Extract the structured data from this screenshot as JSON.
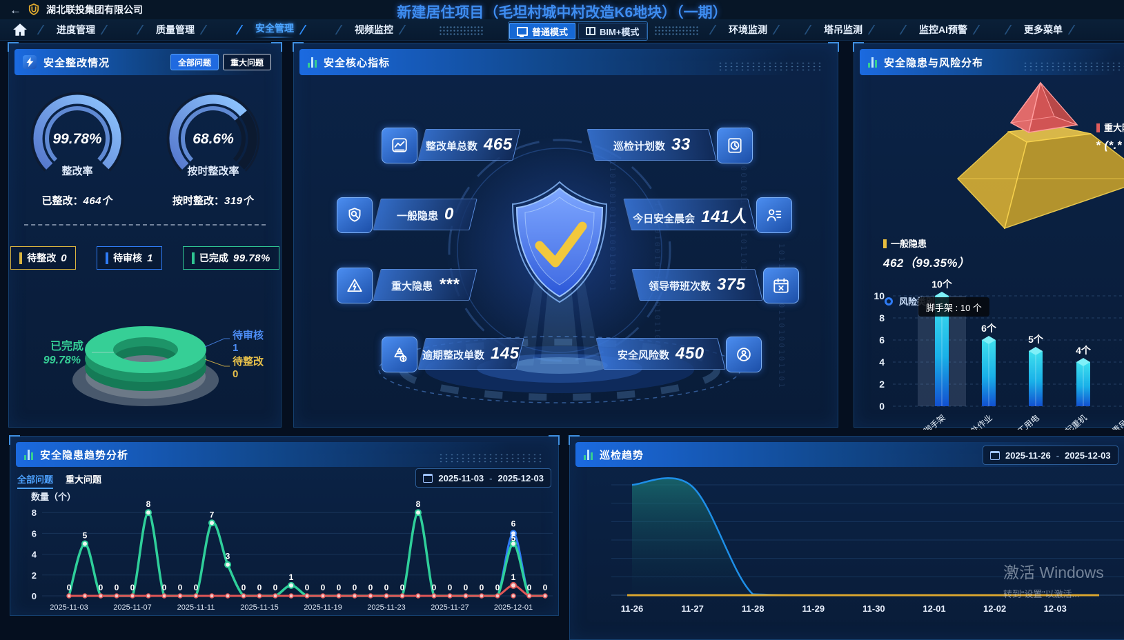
{
  "app": {
    "back_icon": "←",
    "company": "湖北联投集团有限公司",
    "project_title": "新建居住项目（毛坦村城中村改造K6地块）（一期）"
  },
  "nav": {
    "tabs_left": [
      {
        "label": "进度管理"
      },
      {
        "label": "质量管理"
      },
      {
        "label": "安全管理"
      },
      {
        "label": "视频监控"
      }
    ],
    "active_tab": "安全管理",
    "mode_toggle": [
      {
        "label": "普通模式",
        "active": true
      },
      {
        "label": "BIM+模式",
        "active": false
      }
    ],
    "tabs_right": [
      {
        "label": "环境监测"
      },
      {
        "label": "塔吊监测"
      },
      {
        "label": "监控AI预警"
      },
      {
        "label": "更多菜单"
      }
    ]
  },
  "rectification": {
    "title": "安全整改情况",
    "filters": [
      {
        "label": "全部问题",
        "active": true
      },
      {
        "label": "重大问题",
        "active": false
      }
    ],
    "gauges": [
      {
        "value": "99.78%",
        "percent": 99.78,
        "label": "整改率",
        "stat_label": "已整改：",
        "stat_value": "464个"
      },
      {
        "value": "68.6%",
        "percent": 68.6,
        "label": "按时整改率",
        "stat_label": "按时整改：",
        "stat_value": "319个"
      }
    ],
    "badges": [
      {
        "label": "待整改",
        "value": "0",
        "color": "#d9b53f"
      },
      {
        "label": "待审核",
        "value": "1",
        "color": "#2f7bf5"
      },
      {
        "label": "已完成",
        "value": "99.78%",
        "color": "#2fc492"
      }
    ],
    "donut_labels": {
      "done_label": "已完成",
      "done_value": "99.78%",
      "review_label": "待审核",
      "review_value": "1",
      "todo_label": "待整改",
      "todo_value": "0"
    }
  },
  "core": {
    "title": "安全核心指标",
    "binary": "1011010010110100101101",
    "stats": [
      {
        "label": "整改单总数",
        "value": "465",
        "icon": "trend-chart-icon"
      },
      {
        "label": "巡检计划数",
        "value": "33",
        "icon": "clock-doc-icon"
      },
      {
        "label": "一般隐患",
        "value": "0",
        "icon": "shield-search-icon"
      },
      {
        "label": "今日安全晨会",
        "value": "141人",
        "icon": "roster-icon"
      },
      {
        "label": "重大隐患",
        "value": "***",
        "icon": "warning-bolt-icon"
      },
      {
        "label": "领导带班次数",
        "value": "375",
        "icon": "calendar-x-icon"
      },
      {
        "label": "逾期整改单数",
        "value": "145",
        "icon": "pyramid-bolt-icon"
      },
      {
        "label": "安全风险数",
        "value": "450",
        "icon": "risk-target-icon"
      }
    ]
  },
  "distribution": {
    "title": "安全隐患与风险分布",
    "general": {
      "label": "一般隐患",
      "value": "462（99.35%）"
    },
    "major": {
      "label": "重大隐患",
      "value": "* (*.*"
    },
    "category_title": "风险类别"
  },
  "trend": {
    "title": "安全隐患趋势分析",
    "tabs": [
      {
        "label": "全部问题",
        "active": true
      },
      {
        "label": "重大问题",
        "active": false
      }
    ],
    "date_start": "2025-11-03",
    "date_sep": "-",
    "date_end": "2025-12-03"
  },
  "inspection": {
    "title": "巡检趋势",
    "date_start": "2025-11-26",
    "date_sep": "-",
    "date_end": "2025-12-03"
  },
  "watermark": {
    "line1": "激活 Windows",
    "line2": "转到“设置”以激活..."
  },
  "chart_data": [
    {
      "panel": "安全整改情况",
      "type": "gauge",
      "label": "整改率",
      "value": 99.78,
      "unit": "%"
    },
    {
      "panel": "安全整改情况",
      "type": "gauge",
      "label": "按时整改率",
      "value": 68.6,
      "unit": "%"
    },
    {
      "panel": "安全整改情况",
      "type": "pie",
      "slices": [
        {
          "name": "已完成",
          "value": "99.78%",
          "color": "#35cf96"
        },
        {
          "name": "待审核",
          "value": "1",
          "color": "#4d8df5"
        },
        {
          "name": "待整改",
          "value": "0",
          "color": "#e8c14a"
        }
      ]
    },
    {
      "panel": "安全隐患与风险分布",
      "type": "pyramid",
      "levels": [
        {
          "name": "重大隐患",
          "value": "*",
          "percent": "*.*",
          "color": "#d15454"
        },
        {
          "name": "一般隐患",
          "value": "462",
          "percent": "99.35%",
          "color": "#d9b33c"
        }
      ]
    },
    {
      "panel": "安全隐患与风险分布",
      "type": "bar",
      "title": "风险类别",
      "categories": [
        "脚手架",
        "高处作业",
        "施工用电",
        "塔式起重机",
        "起重吊装"
      ],
      "values": [
        10,
        6,
        5,
        4,
        null
      ],
      "unit": "个",
      "ylim": [
        0,
        10
      ],
      "y_ticks": [
        0,
        2,
        4,
        6,
        8,
        10
      ],
      "grid": "dashed",
      "highlight_index": 0,
      "tooltip": "脚手架 : 10 个"
    },
    {
      "panel": "安全隐患趋势分析",
      "type": "line",
      "ylabel": "数量（个）",
      "ylim": [
        0,
        8
      ],
      "y_ticks": [
        0,
        2,
        4,
        6,
        8
      ],
      "x_start": "2025-11-03",
      "x_end": "2025-12-03",
      "x_tick_labels": [
        "2025-11-03",
        "2025-11-07",
        "2025-11-11",
        "2025-11-15",
        "2025-11-19",
        "2025-11-23",
        "2025-11-27",
        "2025-12-01"
      ],
      "series": [
        {
          "name": "green",
          "color": "#2fcf9a",
          "values": [
            0,
            5,
            0,
            0,
            0,
            8,
            0,
            0,
            0,
            7,
            3,
            0,
            0,
            0,
            1,
            0,
            0,
            0,
            0,
            0,
            0,
            0,
            8,
            0,
            0,
            0,
            0,
            0,
            5,
            0,
            0
          ]
        },
        {
          "name": "blue",
          "color": "#2e7bf5",
          "values": [
            0,
            0,
            0,
            0,
            0,
            0,
            0,
            0,
            0,
            0,
            0,
            0,
            0,
            0,
            0,
            0,
            0,
            0,
            0,
            0,
            0,
            0,
            0,
            0,
            0,
            0,
            0,
            0,
            6,
            0,
            0
          ]
        },
        {
          "name": "red",
          "color": "#e05656",
          "values": [
            0,
            0,
            0,
            0,
            0,
            0,
            0,
            0,
            0,
            0,
            0,
            0,
            0,
            0,
            0,
            0,
            0,
            0,
            0,
            0,
            0,
            0,
            0,
            0,
            0,
            0,
            0,
            0,
            1,
            0,
            0
          ]
        }
      ]
    },
    {
      "panel": "巡检趋势",
      "type": "area",
      "x_tick_labels": [
        "11-26",
        "11-27",
        "11-28",
        "11-29",
        "11-30",
        "12-01",
        "12-02",
        "12-03"
      ],
      "y_axis_labels_visible": false,
      "grid": "solid",
      "series": [
        {
          "name": "blue-area",
          "color": "#1e8fe8",
          "values": [
            6,
            5.9,
            0.05,
            0,
            0,
            0,
            0,
            0
          ]
        },
        {
          "name": "yellow-line",
          "color": "#d9a52f",
          "values": [
            0,
            0,
            0,
            0,
            0,
            0,
            0,
            0
          ]
        }
      ]
    }
  ]
}
